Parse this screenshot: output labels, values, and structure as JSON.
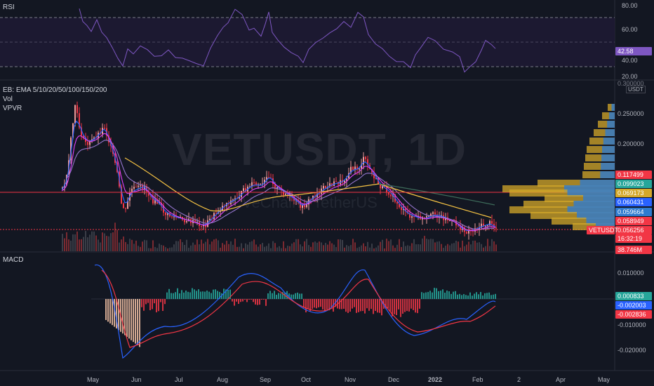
{
  "rsi": {
    "label": "RSI",
    "ticks": [
      "80.00",
      "60.00",
      "40.00",
      "20.00"
    ],
    "current": "42.58",
    "line_color": "#7e57c2",
    "band_color": "#1e1a33"
  },
  "main": {
    "indicator_label": "EB: EMA 5/10/20/50/100/150/200",
    "vol_label": "Vol",
    "vpvr_label": "VPVR",
    "watermark": "VETUSDT, 1D",
    "watermark_sub": "VeChain / TetherUS",
    "currency": "USDT",
    "ticks": [
      "0.250000",
      "0.200000"
    ],
    "top_tick": "0.300000",
    "price_badges": [
      {
        "text": "0.117499",
        "color": "#f23645",
        "value": 0.117499
      },
      {
        "text": "0.099023",
        "color": "#26a69a",
        "value": 0.099023
      },
      {
        "text": "0.069173",
        "color": "#d4a82a",
        "value": 0.069173
      },
      {
        "text": "0.060431",
        "color": "#2962ff",
        "value": 0.060431
      },
      {
        "text": "0.059664",
        "color": "#2e7bcf",
        "value": 0.059664
      },
      {
        "text": "0.058949",
        "color": "#f23645",
        "value": 0.058949
      },
      {
        "text": "0.056256",
        "color": "#f23645",
        "value": 0.056256
      }
    ],
    "symbol_badge": "VETUSDT",
    "countdown": "16:32:19",
    "volume_badge": "38.746M",
    "up_color": "#ef9a9a",
    "down_color": "#f23645",
    "horizontal_line_color": "#f23645"
  },
  "macd": {
    "label": "MACD",
    "ticks": [
      "0.010000",
      "-0.010000",
      "-0.020000"
    ],
    "badges": [
      {
        "text": "0.000833",
        "color": "#26a69a"
      },
      {
        "text": "-0.002003",
        "color": "#2962ff"
      },
      {
        "text": "-0.002836",
        "color": "#f23645"
      }
    ]
  },
  "time_axis": [
    "May",
    "Jun",
    "Jul",
    "Aug",
    "Sep",
    "Oct",
    "Nov",
    "Dec",
    "2022",
    "Feb",
    "2",
    "Apr",
    "May"
  ]
}
